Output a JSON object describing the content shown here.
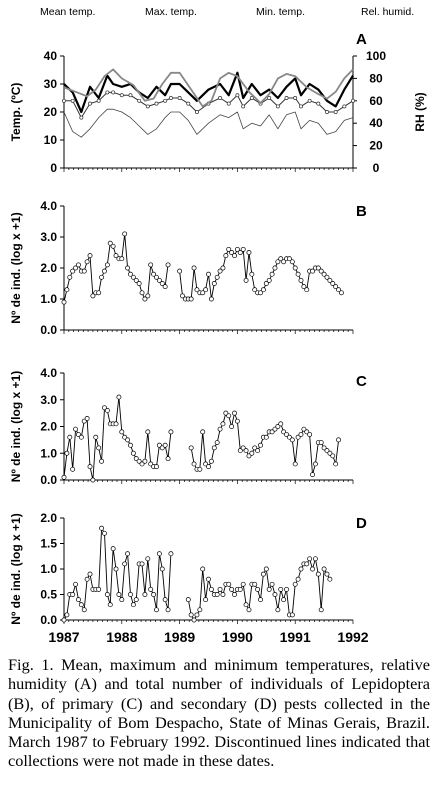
{
  "legend": [
    {
      "label": "Mean temp.",
      "series": "mean"
    },
    {
      "label": "Max. temp.",
      "series": "max"
    },
    {
      "label": "Min. temp.",
      "series": "min"
    },
    {
      "label": "Rel. humid.",
      "series": "rh"
    }
  ],
  "x_labels": [
    "1987",
    "1988",
    "1989",
    "1990",
    "1991",
    "1992"
  ],
  "caption": "Fig. 1. Mean, maximum and minimum temperatures, relative humidity (A) and total number of individuals of Lepidoptera (B), of primary (C) and secondary (D) pests collected in the Municipality of Bom Despacho, State of Minas Gerais, Brazil. March 1987 to February 1992. Discontinued lines indicated that collections were not made in these dates.",
  "chart_data": [
    {
      "panel": "A",
      "type": "line",
      "ylabel": "Temp. (ºC)",
      "y2label": "RH (%)",
      "ylim": [
        0,
        40
      ],
      "yticks": [
        "0",
        "10",
        "20",
        "30",
        "40"
      ],
      "y2lim": [
        0,
        100
      ],
      "y2ticks": [
        "0",
        "20",
        "40",
        "60",
        "80",
        "100"
      ],
      "xlim": [
        1987.0,
        1992.0
      ],
      "series": [
        {
          "name": "Max. temp.",
          "key": "max",
          "axis": "left",
          "x": [
            1987.0,
            1987.15,
            1987.3,
            1987.45,
            1987.6,
            1987.75,
            1987.85,
            1988.0,
            1988.15,
            1988.3,
            1988.45,
            1988.6,
            1988.75,
            1988.85,
            1989.0,
            1989.15,
            1989.3,
            1989.5,
            1989.7,
            1989.85,
            1990.0,
            1990.1,
            1990.25,
            1990.4,
            1990.55,
            1990.7,
            1990.85,
            1991.0,
            1991.1,
            1991.25,
            1991.4,
            1991.55,
            1991.7,
            1991.85,
            1992.0
          ],
          "y": [
            30,
            27,
            20,
            29,
            25,
            33,
            30,
            29,
            30,
            27,
            25,
            29,
            26,
            30,
            30,
            27,
            24,
            28,
            30,
            26,
            34,
            25,
            30,
            26,
            28,
            25,
            29,
            32,
            26,
            30,
            28,
            24,
            22,
            28,
            33
          ]
        },
        {
          "name": "Mean temp.",
          "key": "mean",
          "axis": "left",
          "x": [
            1987.0,
            1987.15,
            1987.3,
            1987.45,
            1987.6,
            1987.75,
            1987.85,
            1988.0,
            1988.15,
            1988.3,
            1988.45,
            1988.6,
            1988.75,
            1988.85,
            1989.0,
            1989.15,
            1989.3,
            1989.5,
            1989.7,
            1989.85,
            1990.0,
            1990.1,
            1990.25,
            1990.4,
            1990.55,
            1990.7,
            1990.85,
            1991.0,
            1991.1,
            1991.25,
            1991.4,
            1991.55,
            1991.7,
            1991.85,
            1992.0
          ],
          "y": [
            24,
            24,
            18,
            23,
            24,
            27,
            27,
            26,
            26,
            24,
            22,
            23,
            24,
            25,
            25,
            23,
            20,
            23,
            25,
            23,
            26,
            22,
            25,
            23,
            25,
            22,
            25,
            25,
            22,
            24,
            23,
            20,
            20,
            22,
            24
          ]
        },
        {
          "name": "Min. temp.",
          "key": "min",
          "axis": "left",
          "x": [
            1987.0,
            1987.15,
            1987.3,
            1987.45,
            1987.6,
            1987.75,
            1987.85,
            1988.0,
            1988.15,
            1988.3,
            1988.45,
            1988.6,
            1988.75,
            1988.85,
            1989.0,
            1989.15,
            1989.3,
            1989.5,
            1989.7,
            1989.85,
            1990.0,
            1990.1,
            1990.25,
            1990.4,
            1990.55,
            1990.7,
            1990.85,
            1991.0,
            1991.1,
            1991.25,
            1991.4,
            1991.55,
            1991.7,
            1991.85,
            1992.0
          ],
          "y": [
            20,
            13,
            11,
            14,
            18,
            21,
            21,
            20,
            18,
            15,
            12,
            14,
            18,
            20,
            20,
            17,
            12,
            16,
            19,
            18,
            20,
            14,
            16,
            15,
            19,
            14,
            19,
            20,
            14,
            17,
            16,
            12,
            13,
            17,
            18
          ]
        },
        {
          "name": "Rel. humid.",
          "key": "rh",
          "axis": "right",
          "x": [
            1987.0,
            1987.2,
            1987.4,
            1987.55,
            1987.7,
            1987.85,
            1988.0,
            1988.2,
            1988.4,
            1988.55,
            1988.7,
            1988.85,
            1989.0,
            1989.2,
            1989.4,
            1989.55,
            1989.7,
            1989.85,
            1990.0,
            1990.2,
            1990.4,
            1990.55,
            1990.7,
            1990.85,
            1991.0,
            1991.2,
            1991.4,
            1991.55,
            1991.7,
            1991.85,
            1992.0
          ],
          "y": [
            72,
            68,
            64,
            70,
            82,
            88,
            80,
            74,
            60,
            62,
            75,
            85,
            85,
            70,
            55,
            60,
            80,
            85,
            82,
            68,
            58,
            66,
            80,
            84,
            82,
            72,
            66,
            62,
            68,
            80,
            88
          ]
        }
      ]
    },
    {
      "panel": "B",
      "type": "line",
      "ylabel": "Nº de ind. (log x +1)",
      "ylim": [
        0,
        4
      ],
      "yticks": [
        "0.0",
        "1.0",
        "2.0",
        "3.0",
        "4.0"
      ],
      "xlim": [
        1987.0,
        1992.0
      ],
      "segments": [
        {
          "x": [
            1987.0,
            1987.05,
            1987.1,
            1987.15,
            1987.2,
            1987.25,
            1987.3,
            1987.35,
            1987.4,
            1987.45,
            1987.5,
            1987.55,
            1987.6,
            1987.65,
            1987.7,
            1987.75,
            1987.8,
            1987.85,
            1987.9,
            1987.95,
            1988.0,
            1988.05,
            1988.1,
            1988.15,
            1988.2,
            1988.25,
            1988.3,
            1988.35,
            1988.4,
            1988.45,
            1988.5,
            1988.55,
            1988.6,
            1988.65,
            1988.7,
            1988.75,
            1988.8
          ],
          "y": [
            0.9,
            1.3,
            1.7,
            1.9,
            2.0,
            2.1,
            1.9,
            1.9,
            2.2,
            2.4,
            1.1,
            1.2,
            1.2,
            1.7,
            1.9,
            2.1,
            2.8,
            2.7,
            2.4,
            2.3,
            2.3,
            3.1,
            2.0,
            1.8,
            1.7,
            1.6,
            1.5,
            1.2,
            1.0,
            1.1,
            2.1,
            1.8,
            1.7,
            1.6,
            1.5,
            1.4,
            2.1
          ]
        },
        {
          "x": [
            1989.0,
            1989.05,
            1989.1,
            1989.15,
            1989.2,
            1989.25,
            1989.3,
            1989.35,
            1989.4,
            1989.45,
            1989.5,
            1989.55,
            1989.6,
            1989.65,
            1989.7,
            1989.75,
            1989.8,
            1989.85,
            1989.9,
            1989.95,
            1990.0,
            1990.05,
            1990.1,
            1990.15,
            1990.2,
            1990.25,
            1990.3,
            1990.35,
            1990.4,
            1990.45,
            1990.5,
            1990.55,
            1990.6,
            1990.65,
            1990.7,
            1990.75,
            1990.8,
            1990.85,
            1990.9,
            1990.95,
            1991.0,
            1991.05,
            1991.1,
            1991.15,
            1991.2,
            1991.25,
            1991.3,
            1991.35,
            1991.4,
            1991.45,
            1991.5,
            1991.55,
            1991.6,
            1991.65,
            1991.7,
            1991.75,
            1991.8
          ],
          "y": [
            1.9,
            1.1,
            1.0,
            1.0,
            1.0,
            2.0,
            1.3,
            1.2,
            1.2,
            1.3,
            1.8,
            1.0,
            1.5,
            1.7,
            1.9,
            2.0,
            2.4,
            2.6,
            2.5,
            2.4,
            2.6,
            2.5,
            2.6,
            1.6,
            2.5,
            1.8,
            1.3,
            1.2,
            1.2,
            1.3,
            1.5,
            1.6,
            1.8,
            2.0,
            2.2,
            2.3,
            2.2,
            2.3,
            2.3,
            2.2,
            2.0,
            1.8,
            1.6,
            1.4,
            1.3,
            1.9,
            1.9,
            2.0,
            2.0,
            1.9,
            1.8,
            1.7,
            1.6,
            1.5,
            1.4,
            1.3,
            1.2
          ]
        }
      ]
    },
    {
      "panel": "C",
      "type": "line",
      "ylabel": "Nº de ind. (log x +1)",
      "ylim": [
        0,
        4
      ],
      "yticks": [
        "0.0",
        "1.0",
        "2.0",
        "3.0",
        "4.0"
      ],
      "xlim": [
        1987.0,
        1992.0
      ],
      "segments": [
        {
          "x": [
            1987.0,
            1987.05,
            1987.1,
            1987.15,
            1987.2,
            1987.25,
            1987.3,
            1987.35,
            1987.4,
            1987.45,
            1987.5,
            1987.55,
            1987.6,
            1987.65,
            1987.7,
            1987.75,
            1987.8,
            1987.85,
            1987.9,
            1987.95,
            1988.0,
            1988.05,
            1988.1,
            1988.15,
            1988.2,
            1988.25,
            1988.3,
            1988.35,
            1988.4,
            1988.45,
            1988.5,
            1988.55,
            1988.6,
            1988.65,
            1988.7,
            1988.75,
            1988.8,
            1988.85
          ],
          "y": [
            0.1,
            1.0,
            1.6,
            0.4,
            1.9,
            1.7,
            1.6,
            2.2,
            2.3,
            0.5,
            0.0,
            1.6,
            1.2,
            0.7,
            2.7,
            2.6,
            2.1,
            2.1,
            2.1,
            3.1,
            1.8,
            1.6,
            1.5,
            1.3,
            1.0,
            0.8,
            0.7,
            0.6,
            0.7,
            1.8,
            0.6,
            0.5,
            0.5,
            1.3,
            1.2,
            1.3,
            0.8,
            1.8
          ]
        },
        {
          "x": [
            1989.2,
            1989.25,
            1989.3,
            1989.35,
            1989.4,
            1989.45,
            1989.5,
            1989.55,
            1989.6,
            1989.65,
            1989.7,
            1989.75,
            1989.8,
            1989.85,
            1989.9,
            1989.95,
            1990.0,
            1990.05,
            1990.1,
            1990.15,
            1990.2,
            1990.25,
            1990.3,
            1990.35,
            1990.4,
            1990.45,
            1990.5,
            1990.55,
            1990.6,
            1990.65,
            1990.7,
            1990.75,
            1990.8,
            1990.85,
            1990.9,
            1990.95,
            1991.0,
            1991.05,
            1991.1,
            1991.15,
            1991.2,
            1991.25,
            1991.3,
            1991.35,
            1991.4,
            1991.45,
            1991.5,
            1991.55,
            1991.6,
            1991.65,
            1991.7,
            1991.75
          ],
          "y": [
            1.2,
            0.6,
            0.4,
            0.4,
            1.8,
            0.6,
            0.5,
            0.7,
            1.2,
            1.4,
            1.9,
            2.1,
            2.5,
            2.4,
            2.0,
            2.5,
            2.2,
            1.1,
            1.2,
            1.1,
            0.9,
            1.0,
            1.2,
            1.1,
            1.3,
            1.6,
            1.6,
            1.8,
            1.8,
            1.9,
            2.0,
            2.1,
            1.8,
            1.7,
            1.6,
            1.5,
            0.6,
            1.6,
            1.7,
            1.9,
            1.8,
            1.7,
            0.2,
            0.6,
            1.4,
            1.4,
            1.2,
            1.1,
            1.0,
            0.9,
            0.6,
            1.5
          ]
        }
      ]
    },
    {
      "panel": "D",
      "type": "line",
      "ylabel": "Nº de ind. (log x +1)",
      "ylim": [
        0,
        2
      ],
      "yticks": [
        "0.0",
        "0.5",
        "1.0",
        "1.5",
        "2.0"
      ],
      "xlim": [
        1987.0,
        1992.0
      ],
      "segments": [
        {
          "x": [
            1987.0,
            1987.05,
            1987.1,
            1987.15,
            1987.2,
            1987.25,
            1987.3,
            1987.35,
            1987.4,
            1987.45,
            1987.5,
            1987.55,
            1987.6,
            1987.65,
            1987.7,
            1987.75,
            1987.8,
            1987.85,
            1987.9,
            1987.95,
            1988.0,
            1988.05,
            1988.1,
            1988.15,
            1988.2,
            1988.25,
            1988.3,
            1988.35,
            1988.4,
            1988.45,
            1988.5,
            1988.55,
            1988.6,
            1988.65,
            1988.7,
            1988.75,
            1988.8,
            1988.85
          ],
          "y": [
            0.0,
            0.1,
            0.5,
            0.5,
            0.7,
            0.4,
            0.3,
            0.2,
            0.8,
            0.9,
            0.6,
            0.6,
            0.6,
            1.8,
            1.7,
            0.5,
            0.3,
            1.4,
            1.0,
            0.5,
            0.4,
            1.1,
            1.3,
            0.5,
            0.3,
            0.4,
            1.1,
            1.1,
            0.5,
            1.2,
            0.6,
            0.5,
            0.2,
            1.3,
            1.0,
            0.4,
            0.2,
            1.3
          ]
        },
        {
          "x": [
            1989.15,
            1989.2,
            1989.25,
            1989.3,
            1989.35,
            1989.4,
            1989.45,
            1989.5,
            1989.55,
            1989.6,
            1989.65,
            1989.7,
            1989.75,
            1989.8,
            1989.85,
            1989.9,
            1989.95,
            1990.0,
            1990.05,
            1990.1,
            1990.15,
            1990.2,
            1990.25,
            1990.3,
            1990.35,
            1990.4,
            1990.45,
            1990.5,
            1990.55,
            1990.6,
            1990.65,
            1990.7,
            1990.75,
            1990.8,
            1990.85,
            1990.9,
            1990.95,
            1991.0,
            1991.05,
            1991.1,
            1991.15,
            1991.2,
            1991.25,
            1991.3,
            1991.35,
            1991.4,
            1991.45,
            1991.5,
            1991.55,
            1991.6
          ],
          "y": [
            0.4,
            0.1,
            0.0,
            0.1,
            0.2,
            1.0,
            0.4,
            0.8,
            0.6,
            0.5,
            0.5,
            0.6,
            0.5,
            0.7,
            0.7,
            0.6,
            0.5,
            0.6,
            0.6,
            0.7,
            0.3,
            0.2,
            0.7,
            0.7,
            0.6,
            0.4,
            0.9,
            1.0,
            0.6,
            0.7,
            0.5,
            0.2,
            0.6,
            0.4,
            0.6,
            0.1,
            0.1,
            0.7,
            0.8,
            1.0,
            1.1,
            1.1,
            1.2,
            1.0,
            1.2,
            0.9,
            0.2,
            1.0,
            0.9,
            0.8
          ]
        }
      ]
    }
  ]
}
